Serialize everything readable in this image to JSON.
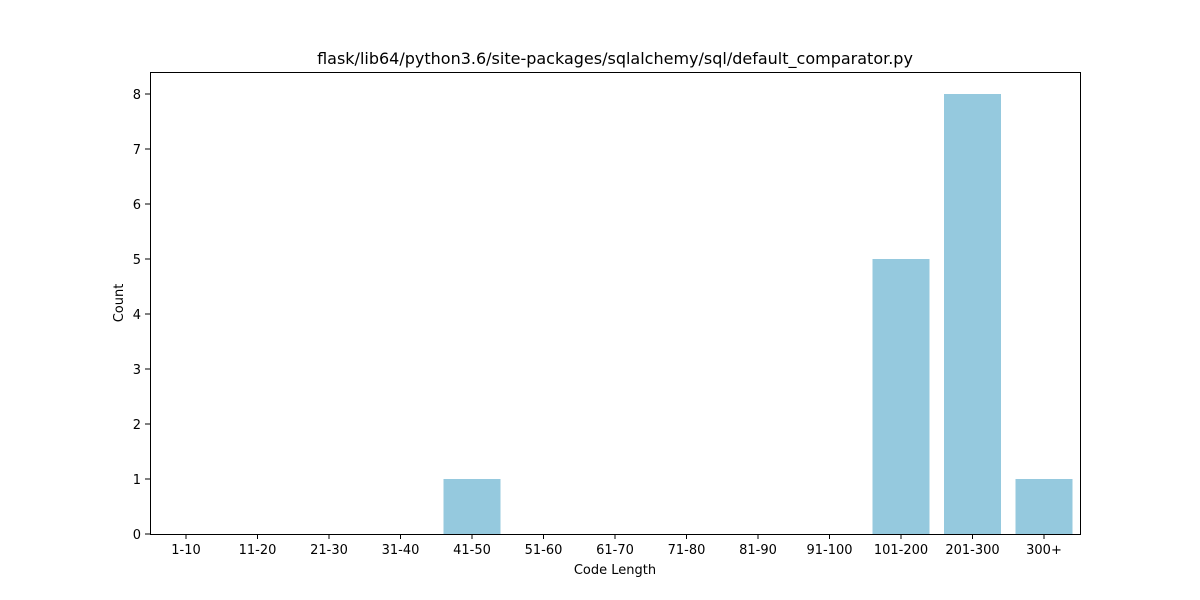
{
  "chart_data": {
    "type": "bar",
    "title": "flask/lib64/python3.6/site-packages/sqlalchemy/sql/default_comparator.py",
    "xlabel": "Code Length",
    "ylabel": "Count",
    "categories": [
      "1-10",
      "11-20",
      "21-30",
      "31-40",
      "41-50",
      "51-60",
      "61-70",
      "71-80",
      "81-90",
      "91-100",
      "101-200",
      "201-300",
      "300+"
    ],
    "values": [
      0,
      0,
      0,
      0,
      1,
      0,
      0,
      0,
      0,
      0,
      5,
      8,
      1
    ],
    "ylim": [
      0,
      8.4
    ],
    "yticks": [
      0,
      1,
      2,
      3,
      4,
      5,
      6,
      7,
      8
    ],
    "bar_color": "#95c9de",
    "grid": false,
    "legend": "none"
  }
}
